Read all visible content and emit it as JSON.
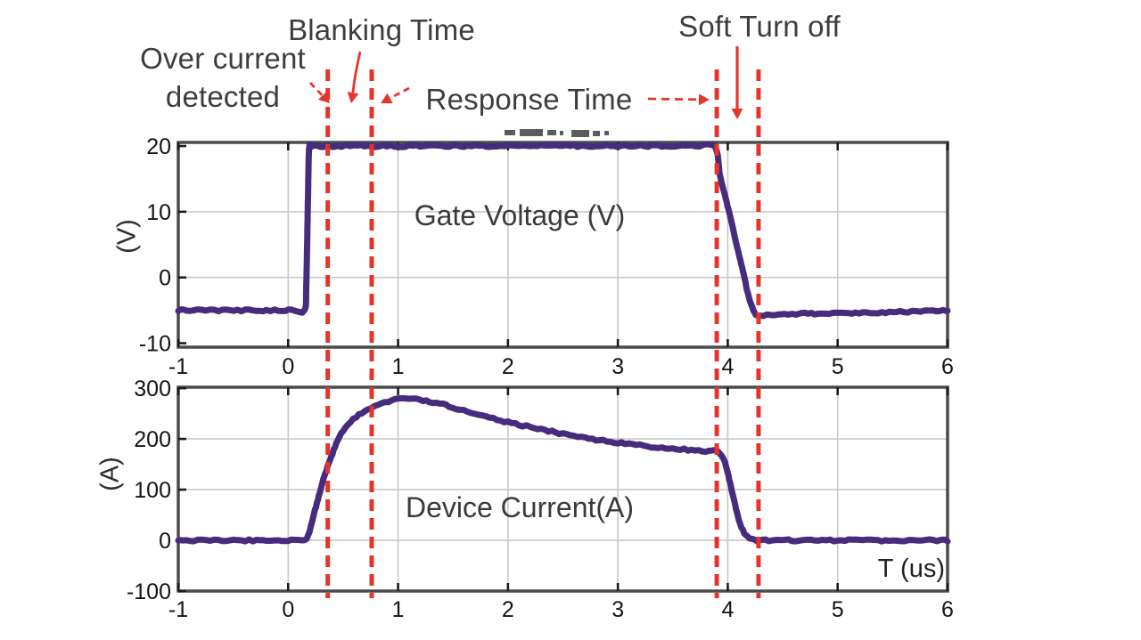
{
  "annotations": {
    "blanking_time": "Blanking Time",
    "over_current_line1": "Over current",
    "over_current_line2": "detected",
    "response_time": "Response Time",
    "soft_turn_off": "Soft Turn off",
    "arrow_color": "#e5352b",
    "text_color": "#3d3d3d"
  },
  "event_markers": {
    "t_values": [
      0.36,
      0.76,
      3.9,
      4.28
    ],
    "color": "#e5352b",
    "style": "dashed"
  },
  "chart_data": [
    {
      "type": "line",
      "inner_label": "Gate Voltage (V)",
      "ylabel": "(V)",
      "xlabel": "",
      "xlim": [
        -1,
        6
      ],
      "ylim": [
        -10.6,
        20.55
      ],
      "xticks": [
        -1,
        0,
        1,
        2,
        3,
        4,
        5,
        6
      ],
      "yticks": [
        20,
        10,
        0,
        -10
      ],
      "grid": true,
      "series": [
        {
          "name": "gate_voltage",
          "color": "#472c7e",
          "points": [
            [
              -1,
              -5
            ],
            [
              -0.6,
              -5
            ],
            [
              -0.2,
              -5
            ],
            [
              0.05,
              -5
            ],
            [
              0.15,
              -5
            ],
            [
              0.165,
              -1
            ],
            [
              0.18,
              12
            ],
            [
              0.19,
              19.5
            ],
            [
              0.21,
              20
            ],
            [
              0.3,
              20
            ],
            [
              0.6,
              20
            ],
            [
              1,
              20
            ],
            [
              1.4,
              20
            ],
            [
              1.8,
              20
            ],
            [
              2.2,
              20
            ],
            [
              2.6,
              20
            ],
            [
              3,
              20
            ],
            [
              3.4,
              20
            ],
            [
              3.7,
              20
            ],
            [
              3.88,
              20
            ],
            [
              3.93,
              15.5
            ],
            [
              3.99,
              11.5
            ],
            [
              4.06,
              6.5
            ],
            [
              4.13,
              1.5
            ],
            [
              4.19,
              -2.8
            ],
            [
              4.24,
              -5.2
            ],
            [
              4.28,
              -5.7
            ],
            [
              4.4,
              -5.7
            ],
            [
              4.7,
              -5.5
            ],
            [
              5.1,
              -5.4
            ],
            [
              5.6,
              -5.2
            ],
            [
              6,
              -5
            ]
          ]
        }
      ]
    },
    {
      "type": "line",
      "inner_label": "Device Current(A)",
      "ylabel": "(A)",
      "xlabel": "T (us)",
      "xlim": [
        -1,
        6
      ],
      "ylim": [
        -100,
        302
      ],
      "xticks": [
        -1,
        0,
        1,
        2,
        3,
        4,
        5,
        6
      ],
      "yticks": [
        300,
        200,
        100,
        0,
        -100
      ],
      "grid": true,
      "series": [
        {
          "name": "device_current",
          "color": "#472c7e",
          "points": [
            [
              -1,
              0
            ],
            [
              -0.6,
              0
            ],
            [
              -0.2,
              0
            ],
            [
              0.05,
              0
            ],
            [
              0.15,
              0
            ],
            [
              0.18,
              8
            ],
            [
              0.22,
              40
            ],
            [
              0.27,
              80
            ],
            [
              0.32,
              120
            ],
            [
              0.38,
              158
            ],
            [
              0.45,
              196
            ],
            [
              0.52,
              222
            ],
            [
              0.62,
              244
            ],
            [
              0.75,
              260
            ],
            [
              0.88,
              271
            ],
            [
              1,
              278
            ],
            [
              1.1,
              280
            ],
            [
              1.2,
              277
            ],
            [
              1.35,
              271
            ],
            [
              1.5,
              262
            ],
            [
              1.7,
              249
            ],
            [
              1.9,
              238
            ],
            [
              2.1,
              228
            ],
            [
              2.3,
              219
            ],
            [
              2.5,
              210
            ],
            [
              2.7,
              202
            ],
            [
              2.9,
              196
            ],
            [
              3.1,
              190
            ],
            [
              3.3,
              185
            ],
            [
              3.5,
              181
            ],
            [
              3.7,
              178
            ],
            [
              3.85,
              175
            ],
            [
              3.9,
              177
            ],
            [
              3.96,
              163
            ],
            [
              4.0,
              132
            ],
            [
              4.05,
              86
            ],
            [
              4.1,
              42
            ],
            [
              4.15,
              14
            ],
            [
              4.2,
              3
            ],
            [
              4.25,
              0.5
            ],
            [
              4.3,
              0
            ],
            [
              4.5,
              0
            ],
            [
              5,
              0
            ],
            [
              5.5,
              0
            ],
            [
              6,
              0
            ]
          ]
        }
      ]
    }
  ]
}
